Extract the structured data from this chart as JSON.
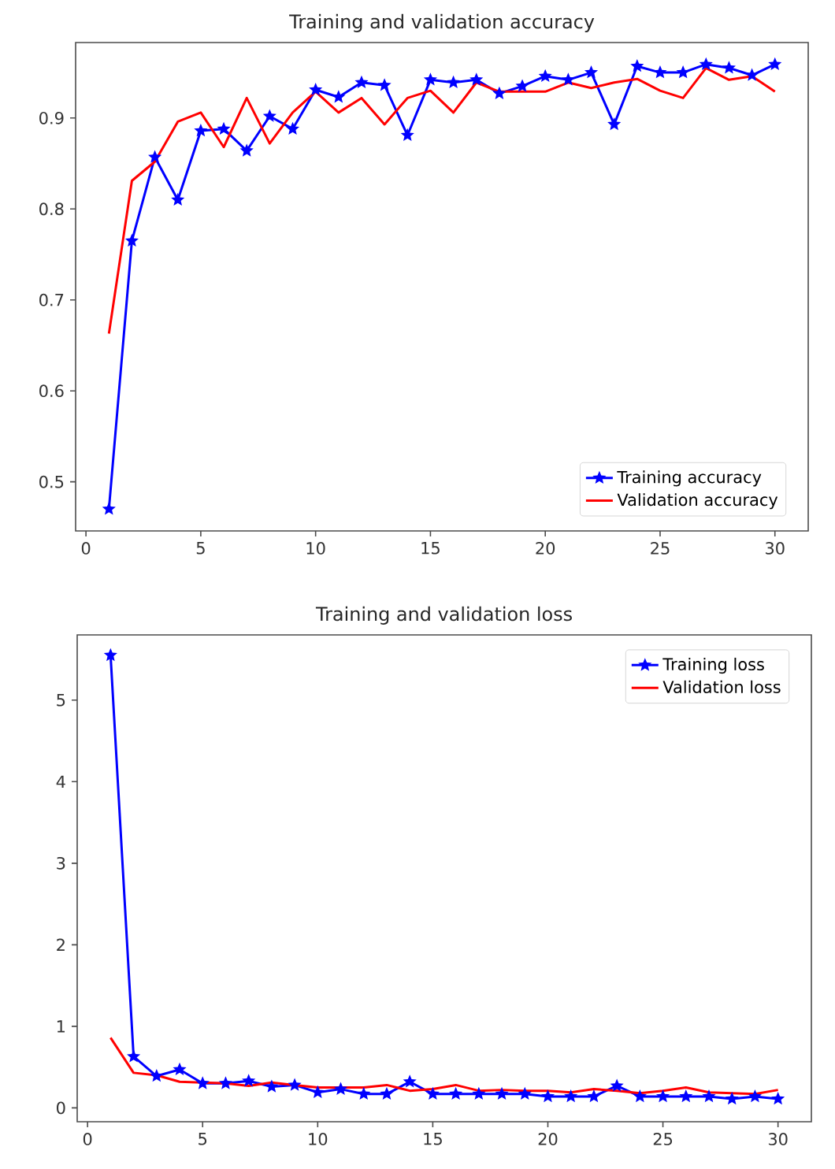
{
  "chart_data": [
    {
      "type": "line",
      "title": "Training and validation accuracy",
      "x": [
        1,
        2,
        3,
        4,
        5,
        6,
        7,
        8,
        9,
        10,
        11,
        12,
        13,
        14,
        15,
        16,
        17,
        18,
        19,
        20,
        21,
        22,
        23,
        24,
        25,
        26,
        27,
        28,
        29,
        30
      ],
      "series": [
        {
          "name": "Training accuracy",
          "color": "#0000ff",
          "marker": "star",
          "values": [
            0.47,
            0.765,
            0.857,
            0.81,
            0.886,
            0.888,
            0.864,
            0.902,
            0.888,
            0.931,
            0.923,
            0.939,
            0.936,
            0.881,
            0.942,
            0.939,
            0.942,
            0.927,
            0.935,
            0.946,
            0.942,
            0.95,
            0.893,
            0.957,
            0.95,
            0.95,
            0.959,
            0.955,
            0.947,
            0.959
          ]
        },
        {
          "name": "Validation accuracy",
          "color": "#ff0000",
          "marker": "none",
          "values": [
            0.663,
            0.831,
            0.852,
            0.896,
            0.906,
            0.868,
            0.922,
            0.872,
            0.906,
            0.929,
            0.906,
            0.922,
            0.893,
            0.922,
            0.93,
            0.906,
            0.939,
            0.929,
            0.929,
            0.929,
            0.939,
            0.933,
            0.939,
            0.943,
            0.93,
            0.922,
            0.955,
            0.942,
            0.946,
            0.929
          ]
        }
      ],
      "xlim": [
        -0.45,
        31.45
      ],
      "xticks": [
        0,
        5,
        10,
        15,
        20,
        25,
        30
      ],
      "ylim": [
        0.446,
        0.983
      ],
      "yticks": [
        0.5,
        0.6,
        0.7,
        0.8,
        0.9
      ],
      "legend": "bottom right",
      "grid": false
    },
    {
      "type": "line",
      "title": "Training and validation loss",
      "x": [
        1,
        2,
        3,
        4,
        5,
        6,
        7,
        8,
        9,
        10,
        11,
        12,
        13,
        14,
        15,
        16,
        17,
        18,
        19,
        20,
        21,
        22,
        23,
        24,
        25,
        26,
        27,
        28,
        29,
        30
      ],
      "series": [
        {
          "name": "Training loss",
          "color": "#0000ff",
          "marker": "star",
          "values": [
            5.55,
            0.63,
            0.39,
            0.47,
            0.3,
            0.3,
            0.33,
            0.26,
            0.28,
            0.19,
            0.23,
            0.17,
            0.17,
            0.32,
            0.17,
            0.17,
            0.17,
            0.17,
            0.17,
            0.14,
            0.14,
            0.14,
            0.27,
            0.14,
            0.14,
            0.14,
            0.14,
            0.11,
            0.14,
            0.11
          ]
        },
        {
          "name": "Validation loss",
          "color": "#ff0000",
          "marker": "none",
          "values": [
            0.86,
            0.43,
            0.4,
            0.32,
            0.31,
            0.3,
            0.27,
            0.31,
            0.28,
            0.25,
            0.25,
            0.25,
            0.28,
            0.21,
            0.23,
            0.28,
            0.21,
            0.22,
            0.21,
            0.21,
            0.19,
            0.23,
            0.21,
            0.18,
            0.21,
            0.25,
            0.19,
            0.18,
            0.17,
            0.22
          ]
        }
      ],
      "xlim": [
        -0.45,
        31.45
      ],
      "xticks": [
        0,
        5,
        10,
        15,
        20,
        25,
        30
      ],
      "ylim": [
        -0.17,
        5.8
      ],
      "yticks": [
        0,
        1,
        2,
        3,
        4,
        5
      ],
      "legend": "top right",
      "grid": false
    }
  ]
}
